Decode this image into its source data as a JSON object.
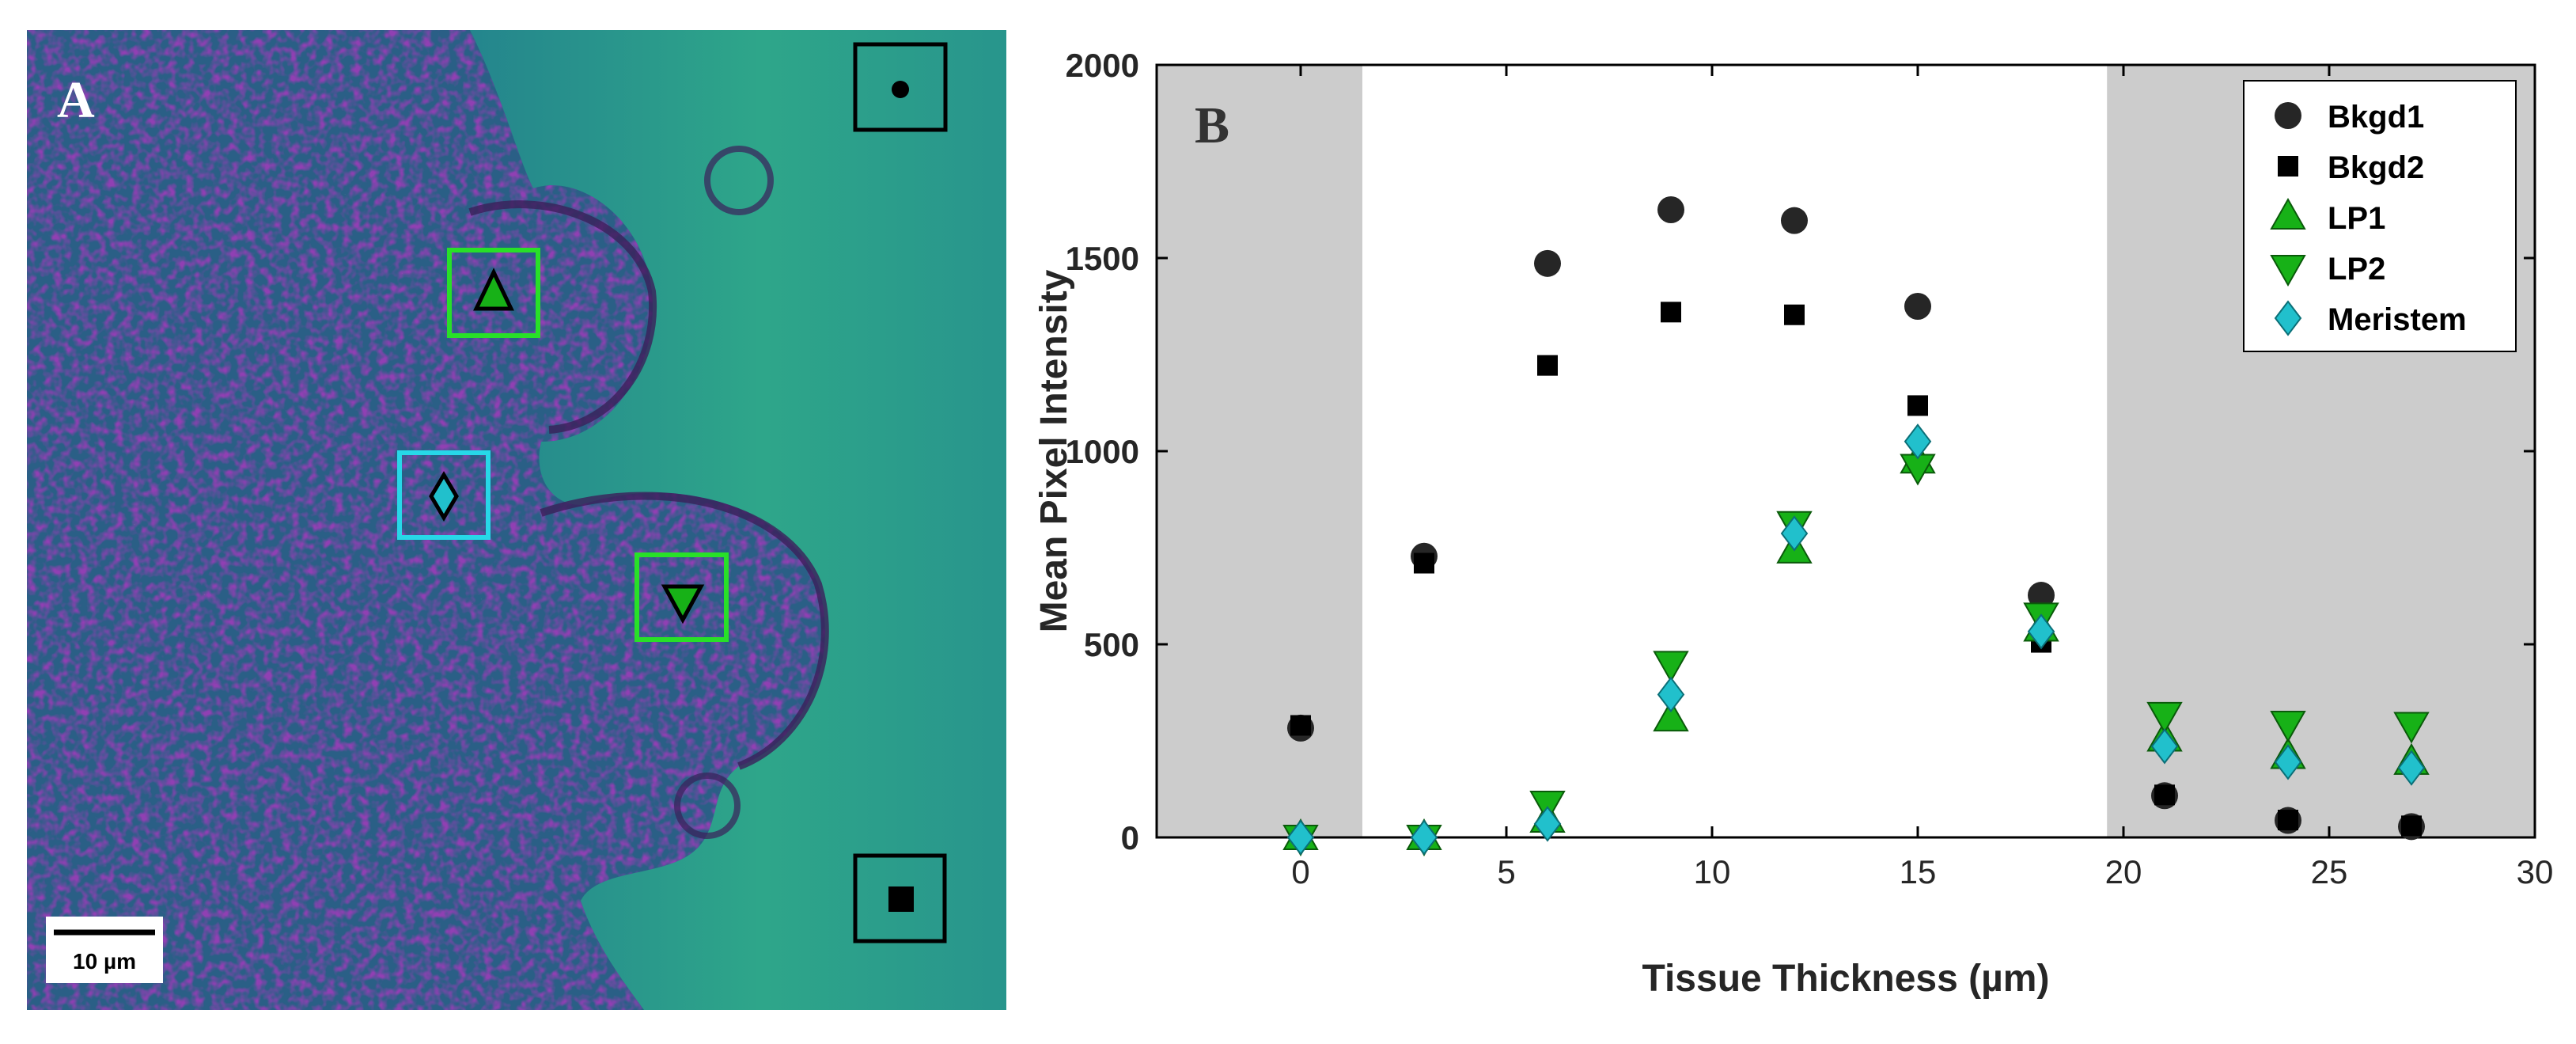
{
  "micrograph": {
    "panel_label": "A",
    "scale_bar_label": "10 µm",
    "regions": [
      {
        "name": "Bkgd1",
        "marker": "circle"
      },
      {
        "name": "Bkgd2",
        "marker": "square"
      },
      {
        "name": "LP1",
        "marker": "triangle-up"
      },
      {
        "name": "LP2",
        "marker": "triangle-down"
      },
      {
        "name": "Meristem",
        "marker": "diamond"
      }
    ]
  },
  "chart_data": {
    "type": "scatter",
    "panel_label": "B",
    "title": "",
    "xlabel": "Tissue Thickness (µm)",
    "ylabel": "Mean Pixel Intensity",
    "xlim": [
      -3.5,
      30
    ],
    "ylim": [
      0,
      2000
    ],
    "xticks": [
      0,
      5,
      10,
      15,
      20,
      25,
      30
    ],
    "yticks": [
      0,
      500,
      1000,
      1500,
      2000
    ],
    "shaded_x_ranges": [
      [
        -3.5,
        1.5
      ],
      [
        19.6,
        30
      ]
    ],
    "legend_position": "top-right",
    "series": [
      {
        "name": "Bkgd1",
        "marker": "circle",
        "color": "#000000",
        "x": [
          0,
          3,
          6,
          9,
          12,
          15,
          18,
          21,
          24,
          27
        ],
        "y": [
          283,
          728,
          1486,
          1625,
          1597,
          1375,
          627,
          108,
          44,
          28
        ]
      },
      {
        "name": "Bkgd2",
        "marker": "square",
        "color": "#000000",
        "x": [
          0,
          3,
          6,
          9,
          12,
          15,
          18,
          21,
          24,
          27
        ],
        "y": [
          290,
          710,
          1222,
          1360,
          1353,
          1118,
          505,
          110,
          45,
          30
        ]
      },
      {
        "name": "LP1",
        "marker": "triangle-up",
        "color": "#17b117",
        "x": [
          0,
          3,
          6,
          9,
          12,
          15,
          18,
          21,
          24,
          27
        ],
        "y": [
          0,
          0,
          45,
          307,
          742,
          975,
          540,
          255,
          210,
          195
        ]
      },
      {
        "name": "LP2",
        "marker": "triangle-down",
        "color": "#17b117",
        "x": [
          0,
          3,
          6,
          9,
          12,
          15,
          18,
          21,
          24,
          27
        ],
        "y": [
          0,
          0,
          88,
          450,
          812,
          960,
          575,
          318,
          295,
          292
        ]
      },
      {
        "name": "Meristem",
        "marker": "diamond",
        "color": "#21c0cc",
        "x": [
          0,
          3,
          6,
          9,
          12,
          15,
          18,
          21,
          24,
          27
        ],
        "y": [
          0,
          0,
          35,
          370,
          787,
          1025,
          533,
          236,
          195,
          180
        ]
      }
    ]
  }
}
